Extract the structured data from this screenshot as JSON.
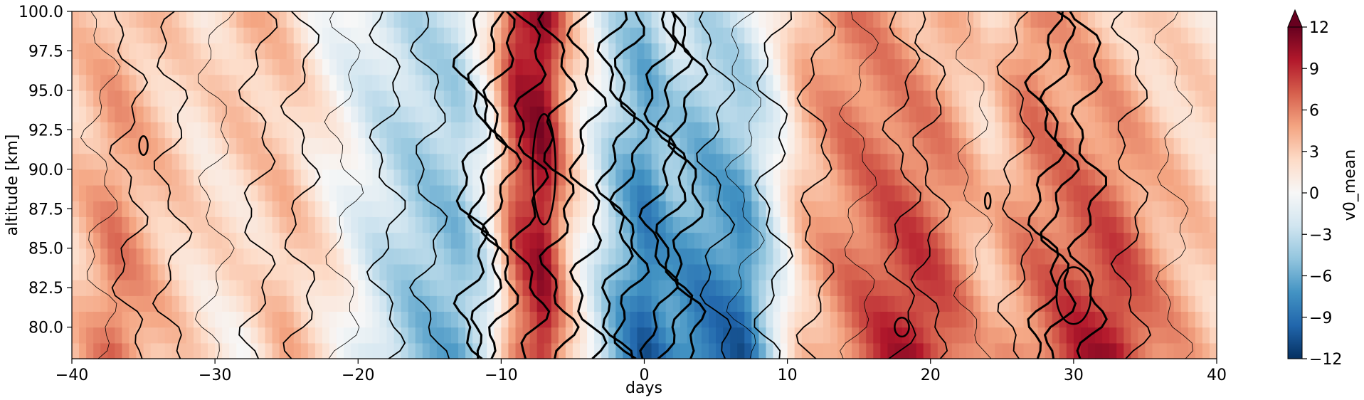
{
  "chart_data": {
    "type": "heatmap",
    "title": "",
    "xlabel": "days",
    "ylabel": "altitude [km]",
    "xlim": [
      -40,
      40
    ],
    "ylim": [
      78,
      100
    ],
    "x_ticks": [
      -40,
      -30,
      -20,
      -10,
      0,
      10,
      20,
      30,
      40
    ],
    "x_tick_labels": [
      "−40",
      "−30",
      "−20",
      "−10",
      "0",
      "10",
      "20",
      "30",
      "40"
    ],
    "y_ticks": [
      80.0,
      82.5,
      85.0,
      87.5,
      90.0,
      92.5,
      95.0,
      97.5,
      100.0
    ],
    "y_tick_labels": [
      "80.0",
      "82.5",
      "85.0",
      "87.5",
      "90.0",
      "92.5",
      "95.0",
      "97.5",
      "100.0"
    ],
    "colorbar": {
      "label": "v0_mean",
      "colormap": "RdBu_r",
      "range": [
        -12,
        12
      ],
      "extend": "max",
      "ticks": [
        12,
        9,
        6,
        3,
        0,
        -3,
        -6,
        -9,
        -12
      ],
      "tick_labels": [
        "12",
        "9",
        "6",
        "3",
        "0",
        "−3",
        "−6",
        "−9",
        "−12"
      ]
    },
    "filled_field_profile": {
      "description_x": "day",
      "x": [
        -40,
        -37,
        -34,
        -31,
        -28,
        -25,
        -22,
        -19,
        -16,
        -13,
        -11,
        -9,
        -7,
        -5,
        -2,
        0,
        2,
        4,
        7,
        9,
        11,
        14,
        17,
        19,
        21,
        24,
        27,
        30,
        33,
        36,
        40
      ],
      "v_low_altitude": [
        3,
        7,
        4,
        2,
        1,
        4,
        2,
        -2,
        -5,
        -6,
        -3,
        6,
        10,
        2,
        -6,
        -10,
        -8,
        -9,
        -10,
        -3,
        3,
        6,
        9,
        10,
        8,
        4,
        6,
        9,
        10,
        6,
        3
      ],
      "v_high_altitude": [
        3,
        4,
        3,
        2,
        4,
        3,
        0,
        -2,
        -3,
        -3,
        1,
        10,
        11,
        3,
        -3,
        -5,
        -2,
        -3,
        -2,
        0,
        4,
        6,
        5,
        4,
        4,
        2,
        6,
        4,
        3,
        2,
        2
      ]
    },
    "line_contours": "black contour lines overlaid, bold near day 0 and around days 28-32 at 81-84 km"
  }
}
